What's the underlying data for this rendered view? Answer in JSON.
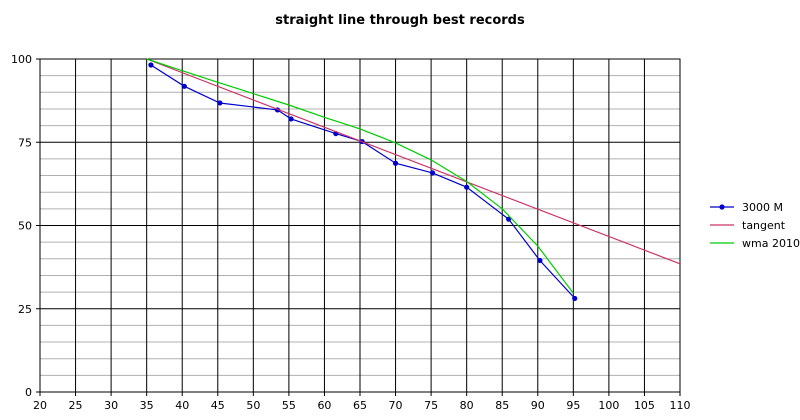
{
  "chart_data": {
    "type": "line",
    "title": "straight line through best records",
    "xlabel": "",
    "ylabel": "",
    "xlim": [
      20,
      110
    ],
    "ylim": [
      0,
      100
    ],
    "x_ticks": [
      20,
      25,
      30,
      35,
      40,
      45,
      50,
      55,
      60,
      65,
      70,
      75,
      80,
      85,
      90,
      95,
      100,
      105,
      110
    ],
    "y_ticks": [
      0,
      25,
      50,
      75,
      100
    ],
    "grid": {
      "x_major": true,
      "y_major": true,
      "y_minor_step": 5
    },
    "legend_position": "right",
    "series": [
      {
        "name": "3000 M",
        "color": "#0000cc",
        "markers": true,
        "x": [
          35.6,
          40.3,
          45.3,
          53.4,
          55.3,
          61.6,
          65.3,
          70.0,
          75.2,
          80.0,
          85.9,
          90.3,
          95.2
        ],
        "y": [
          98.2,
          91.8,
          86.8,
          84.7,
          82.0,
          77.6,
          75.2,
          68.7,
          65.8,
          61.5,
          51.9,
          39.5,
          28.1
        ]
      },
      {
        "name": "tangent",
        "color": "#cc3366",
        "markers": false,
        "x": [
          35,
          110
        ],
        "y": [
          100,
          38.5
        ]
      },
      {
        "name": "wma 2010",
        "color": "#00cc00",
        "markers": false,
        "x": [
          35,
          40,
          45,
          50,
          55,
          60,
          65,
          70,
          75,
          80,
          85,
          90,
          95
        ],
        "y": [
          100,
          96.5,
          93,
          89.6,
          86.2,
          82.5,
          79,
          74.8,
          69.7,
          63.2,
          55,
          43.8,
          29.7
        ]
      }
    ]
  }
}
